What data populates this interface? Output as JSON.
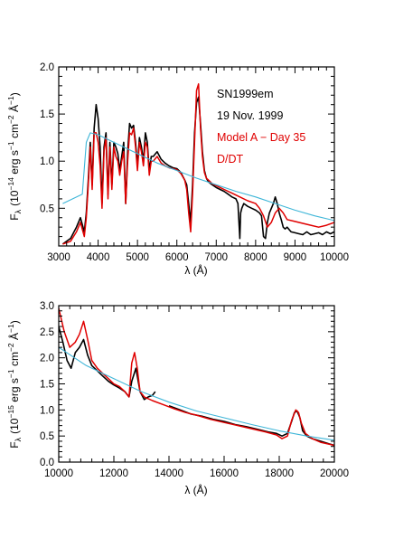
{
  "chart_data": [
    {
      "type": "line",
      "panel": "optical",
      "xlabel": "λ (Å)",
      "ylabel": "F_λ (10^-14 erg s^-1 cm^-2 Å^-1)",
      "ylabel_parts": {
        "f": "F",
        "sub": "λ",
        "a": "(10",
        "e1": "−14",
        "b": " erg s",
        "e2": "−1",
        "c": " cm",
        "e3": "−2",
        "d": " Å",
        "e4": "−1",
        "end": ")"
      },
      "xlim": [
        3000,
        10000
      ],
      "ylim": [
        0.1,
        2.0
      ],
      "xticks": [
        3000,
        4000,
        5000,
        6000,
        7000,
        8000,
        9000,
        10000
      ],
      "yticks": [
        0.5,
        1.0,
        1.5,
        2.0
      ],
      "xtick_labels": [
        "3000",
        "4000",
        "5000",
        "6000",
        "7000",
        "8000",
        "9000",
        "10000"
      ],
      "ytick_labels": [
        "0.5",
        "1.0",
        "1.5",
        "2.0"
      ],
      "legend": [
        {
          "text": "SN1999em",
          "color": "#000000"
        },
        {
          "text": "19 Nov. 1999",
          "color": "#000000"
        },
        {
          "text": "Model A − Day 35",
          "color": "#e00000"
        },
        {
          "text": "D/DT",
          "color": "#e00000"
        }
      ],
      "series": [
        {
          "color": "#000000",
          "width": 1.6,
          "x": [
            3100,
            3300,
            3450,
            3550,
            3650,
            3700,
            3750,
            3800,
            3850,
            3900,
            3950,
            4000,
            4050,
            4100,
            4150,
            4200,
            4250,
            4300,
            4350,
            4400,
            4450,
            4500,
            4550,
            4600,
            4650,
            4700,
            4750,
            4800,
            4850,
            4900,
            4950,
            5000,
            5050,
            5100,
            5150,
            5200,
            5250,
            5300,
            5350,
            5400,
            5500,
            5600,
            5700,
            5800,
            5900,
            6000,
            6100,
            6200,
            6250,
            6300,
            6350,
            6400,
            6450,
            6500,
            6550,
            6600,
            6650,
            6700,
            6750,
            6800,
            6900,
            7000,
            7100,
            7200,
            7300,
            7400,
            7500,
            7550,
            7600,
            7620,
            7650,
            7700,
            7800,
            7900,
            8000,
            8100,
            8150,
            8200,
            8250,
            8300,
            8350,
            8400,
            8450,
            8500,
            8550,
            8600,
            8650,
            8700,
            8750,
            8800,
            8900,
            9000,
            9100,
            9200,
            9300,
            9400,
            9500,
            9600,
            9700,
            9800,
            9900,
            10000
          ],
          "y": [
            0.12,
            0.18,
            0.3,
            0.4,
            0.25,
            0.45,
            0.8,
            1.2,
            0.75,
            1.35,
            1.6,
            1.45,
            1.15,
            0.55,
            1.15,
            1.3,
            0.65,
            1.2,
            0.75,
            1.2,
            1.15,
            1.08,
            0.9,
            1.05,
            1.2,
            0.55,
            1.1,
            1.4,
            1.35,
            1.38,
            1.2,
            0.95,
            1.25,
            1.15,
            1.0,
            1.3,
            1.2,
            0.9,
            1.05,
            1.05,
            1.1,
            1.02,
            0.98,
            0.95,
            0.93,
            0.92,
            0.88,
            0.8,
            0.75,
            0.55,
            0.35,
            0.75,
            1.3,
            1.62,
            1.68,
            1.4,
            1.1,
            0.9,
            0.82,
            0.78,
            0.75,
            0.72,
            0.7,
            0.68,
            0.65,
            0.62,
            0.6,
            0.55,
            0.18,
            0.45,
            0.5,
            0.55,
            0.52,
            0.5,
            0.48,
            0.45,
            0.42,
            0.2,
            0.18,
            0.35,
            0.45,
            0.5,
            0.55,
            0.62,
            0.55,
            0.45,
            0.38,
            0.3,
            0.28,
            0.3,
            0.25,
            0.24,
            0.23,
            0.22,
            0.25,
            0.22,
            0.23,
            0.24,
            0.22,
            0.25,
            0.23,
            0.25
          ]
        },
        {
          "color": "#e00000",
          "width": 1.5,
          "x": [
            3100,
            3300,
            3450,
            3550,
            3650,
            3700,
            3750,
            3800,
            3850,
            3900,
            3950,
            4000,
            4050,
            4100,
            4150,
            4200,
            4250,
            4300,
            4350,
            4400,
            4450,
            4500,
            4550,
            4600,
            4650,
            4700,
            4750,
            4800,
            4850,
            4900,
            4950,
            5000,
            5050,
            5100,
            5150,
            5200,
            5250,
            5300,
            5350,
            5400,
            5500,
            5600,
            5700,
            5800,
            5900,
            6000,
            6100,
            6200,
            6250,
            6300,
            6350,
            6400,
            6450,
            6500,
            6550,
            6600,
            6650,
            6700,
            6750,
            6800,
            6900,
            7000,
            7200,
            7400,
            7600,
            7800,
            8000,
            8100,
            8200,
            8300,
            8400,
            8500,
            8600,
            8700,
            8800,
            9000,
            9200,
            9400,
            9600,
            9800,
            10000
          ],
          "y": [
            0.12,
            0.15,
            0.25,
            0.35,
            0.2,
            0.4,
            0.75,
            1.15,
            0.7,
            1.3,
            1.3,
            1.2,
            0.95,
            0.5,
            1.1,
            1.25,
            0.6,
            1.15,
            0.7,
            1.15,
            1.05,
            1.0,
            0.85,
            1.0,
            1.1,
            0.55,
            1.0,
            1.3,
            1.28,
            1.35,
            1.15,
            0.9,
            1.2,
            1.1,
            0.95,
            1.2,
            1.15,
            0.85,
            1.0,
            1.0,
            1.05,
            0.98,
            0.95,
            0.93,
            0.92,
            0.91,
            0.87,
            0.8,
            0.7,
            0.45,
            0.25,
            0.65,
            1.2,
            1.75,
            1.82,
            1.35,
            1.05,
            0.88,
            0.82,
            0.8,
            0.76,
            0.74,
            0.7,
            0.66,
            0.62,
            0.58,
            0.55,
            0.5,
            0.42,
            0.3,
            0.35,
            0.45,
            0.5,
            0.45,
            0.38,
            0.36,
            0.34,
            0.32,
            0.3,
            0.32,
            0.35
          ]
        },
        {
          "color": "#3fb6d8",
          "width": 1.1,
          "x": [
            3100,
            3600,
            3700,
            3800,
            4000,
            4500,
            5000,
            5500,
            6000,
            6500,
            7000,
            7500,
            8000,
            8500,
            9000,
            9500,
            10000
          ],
          "y": [
            0.55,
            0.65,
            1.2,
            1.3,
            1.28,
            1.18,
            1.08,
            0.98,
            0.9,
            0.82,
            0.75,
            0.68,
            0.62,
            0.55,
            0.48,
            0.42,
            0.37
          ]
        }
      ]
    },
    {
      "type": "line",
      "panel": "near-infrared",
      "xlabel": "λ (Å)",
      "ylabel": "F_λ (10^-15 erg s^-1 cm^-2 Å^-1)",
      "ylabel_parts": {
        "f": "F",
        "sub": "λ",
        "a": "(10",
        "e1": "−15",
        "b": " erg s",
        "e2": "−1",
        "c": " cm",
        "e3": "−2",
        "d": " Å",
        "e4": "−1",
        "end": ")"
      },
      "xlim": [
        10000,
        20000
      ],
      "ylim": [
        0.0,
        3.0
      ],
      "xticks": [
        10000,
        12000,
        14000,
        16000,
        18000,
        20000
      ],
      "yticks": [
        0.0,
        0.5,
        1.0,
        1.5,
        2.0,
        2.5,
        3.0
      ],
      "xtick_labels": [
        "10000",
        "12000",
        "14000",
        "16000",
        "18000",
        "20000"
      ],
      "ytick_labels": [
        "0.0",
        "0.5",
        "1.0",
        "1.5",
        "2.0",
        "2.5",
        "3.0"
      ],
      "series": [
        {
          "color": "#000000",
          "width": 1.6,
          "x": [
            10000,
            10150,
            10300,
            10450,
            10600,
            10750,
            10900,
            11050,
            11200,
            11400,
            11600,
            11800,
            12000,
            12200,
            12400,
            12550,
            12650,
            12800,
            12950,
            13100,
            13250,
            13400,
            13500
          ],
          "y": [
            2.6,
            2.3,
            1.95,
            1.8,
            2.1,
            2.2,
            2.35,
            2.05,
            1.85,
            1.75,
            1.65,
            1.55,
            1.48,
            1.42,
            1.35,
            1.25,
            1.55,
            1.8,
            1.35,
            1.2,
            1.25,
            1.28,
            1.35
          ]
        },
        {
          "color": "#000000",
          "width": 1.6,
          "x": [
            14000,
            14400,
            14800,
            15200,
            15600,
            16000,
            16400,
            16800,
            17200,
            17600,
            17900,
            18100,
            18300,
            18450,
            18550,
            18650,
            18750,
            18850,
            19000,
            19200,
            19500,
            19800,
            20000
          ],
          "y": [
            1.08,
            1.0,
            0.92,
            0.88,
            0.82,
            0.78,
            0.72,
            0.68,
            0.63,
            0.58,
            0.55,
            0.5,
            0.55,
            0.78,
            0.95,
            0.98,
            0.85,
            0.6,
            0.5,
            0.45,
            0.4,
            0.35,
            0.32
          ]
        },
        {
          "color": "#e00000",
          "width": 1.5,
          "x": [
            10000,
            10200,
            10400,
            10600,
            10750,
            10900,
            11050,
            11200,
            11400,
            11600,
            11800,
            12000,
            12200,
            12400,
            12550,
            12650,
            12750,
            12850,
            12950,
            13100,
            13400,
            13800,
            14200,
            14600,
            15000,
            15500,
            16000,
            16500,
            17000,
            17500,
            17900,
            18100,
            18300,
            18450,
            18600,
            18700,
            18800,
            18950,
            19200,
            19500,
            20000
          ],
          "y": [
            2.95,
            2.5,
            2.2,
            2.3,
            2.45,
            2.7,
            2.35,
            1.95,
            1.8,
            1.7,
            1.6,
            1.5,
            1.45,
            1.35,
            1.25,
            1.9,
            2.1,
            1.8,
            1.35,
            1.25,
            1.18,
            1.1,
            1.02,
            0.95,
            0.9,
            0.82,
            0.76,
            0.7,
            0.64,
            0.58,
            0.52,
            0.45,
            0.5,
            0.8,
            1.0,
            0.95,
            0.75,
            0.55,
            0.45,
            0.38,
            0.32
          ]
        },
        {
          "color": "#3fb6d8",
          "width": 1.1,
          "x": [
            10000,
            11000,
            12000,
            13000,
            14000,
            15000,
            16000,
            17000,
            18000,
            19000,
            20000
          ],
          "y": [
            2.2,
            1.85,
            1.6,
            1.35,
            1.15,
            0.98,
            0.85,
            0.72,
            0.6,
            0.5,
            0.42
          ]
        }
      ]
    }
  ]
}
